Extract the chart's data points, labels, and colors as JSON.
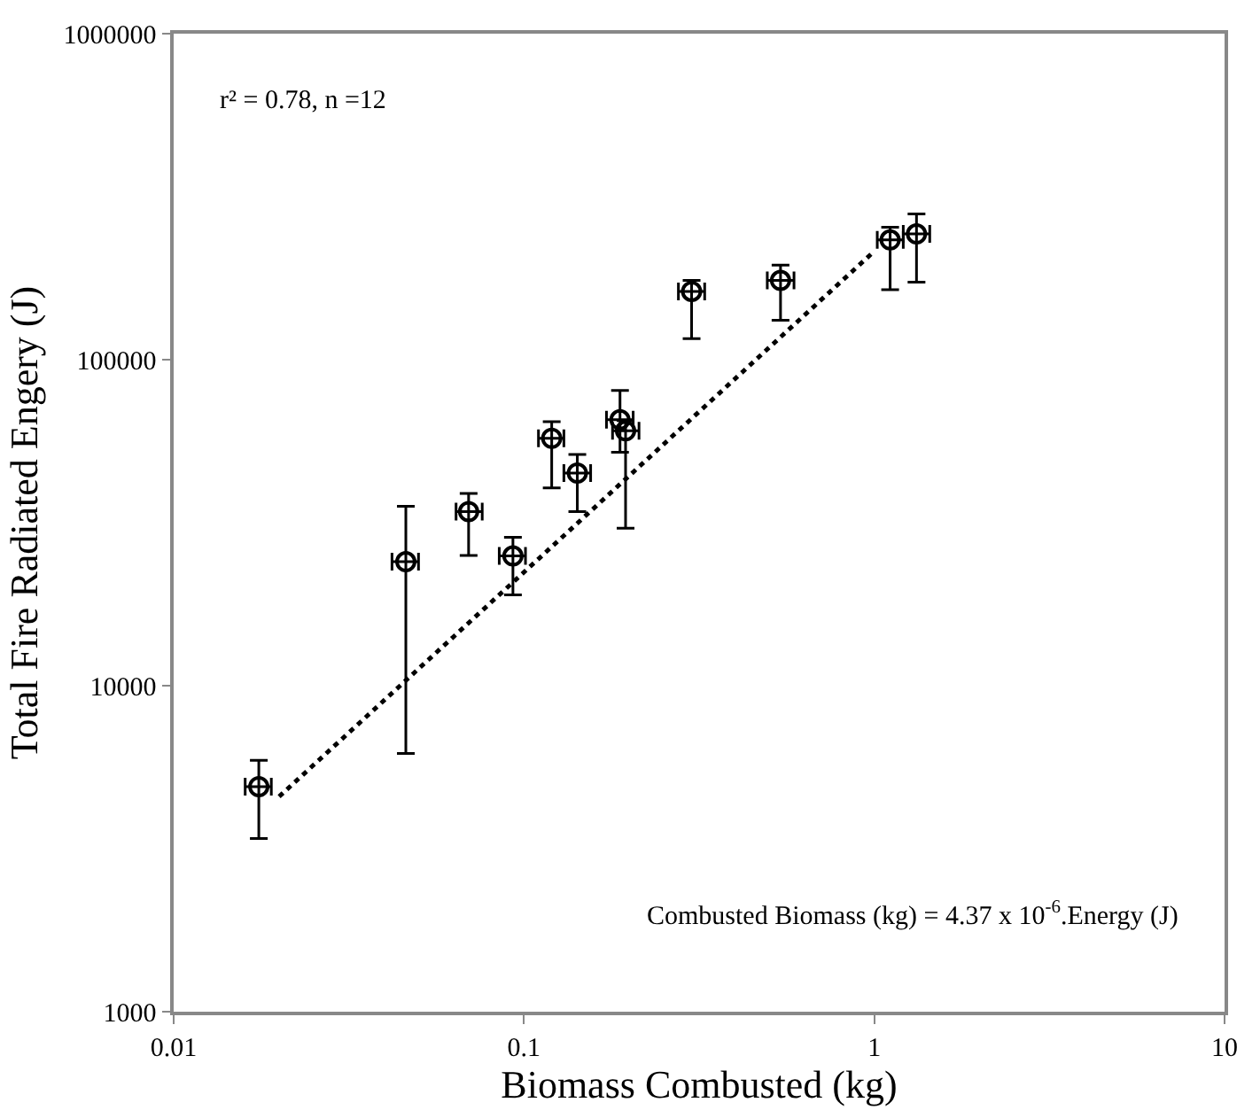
{
  "chart_data": {
    "type": "scatter",
    "xlabel": "Biomass Combusted (kg)",
    "ylabel": "Total Fire Radiated Engery (J)",
    "annotations": [
      "r² = 0.78, n =12",
      "Combusted Biomass (kg) = 4.37 x 10$^{-6}$.Energy (J)"
    ],
    "log": "xy",
    "xlim": [
      0.01,
      10
    ],
    "ylim": [
      1000,
      1000000
    ],
    "xticks": [
      0.01,
      0.1,
      1,
      10
    ],
    "yticks": [
      1000,
      10000,
      100000,
      1000000
    ],
    "series": [
      {
        "marker": "circle",
        "color": "#000000",
        "x": [
          0.0175,
          0.046,
          0.0695,
          0.093,
          0.12,
          0.142,
          0.188,
          0.195,
          0.301,
          0.54,
          1.11,
          1.32
        ],
        "values": [
          4900,
          24000,
          34200,
          25000,
          57400,
          44900,
          65400,
          60500,
          162000,
          175000,
          233000,
          243000
        ],
        "errors": [
          [
            3400,
            5900
          ],
          [
            6200,
            35500
          ],
          [
            25100,
            38900
          ],
          [
            19000,
            28500
          ],
          [
            40400,
            64500
          ],
          [
            34200,
            51200
          ],
          [
            52000,
            80500
          ],
          [
            30400,
            65000
          ],
          [
            116000,
            175000
          ],
          [
            132000,
            195000
          ],
          [
            164000,
            255000
          ],
          [
            173000,
            280000
          ]
        ],
        "xerrors": [
          [
            0.016,
            0.019
          ],
          [
            0.042,
            0.05
          ],
          [
            0.064,
            0.076
          ],
          [
            0.085,
            0.101
          ],
          [
            0.11,
            0.13
          ],
          [
            0.13,
            0.155
          ],
          [
            0.172,
            0.205
          ],
          [
            0.179,
            0.213
          ],
          [
            0.276,
            0.328
          ],
          [
            0.495,
            0.59
          ],
          [
            1.02,
            1.21
          ],
          [
            1.21,
            1.44
          ]
        ]
      },
      {
        "type": "line",
        "marker": "none",
        "color": "#000000",
        "line_style": "dotted",
        "x": [
          0.02,
          0.99
        ],
        "values": [
          4570,
          213000
        ]
      }
    ]
  }
}
